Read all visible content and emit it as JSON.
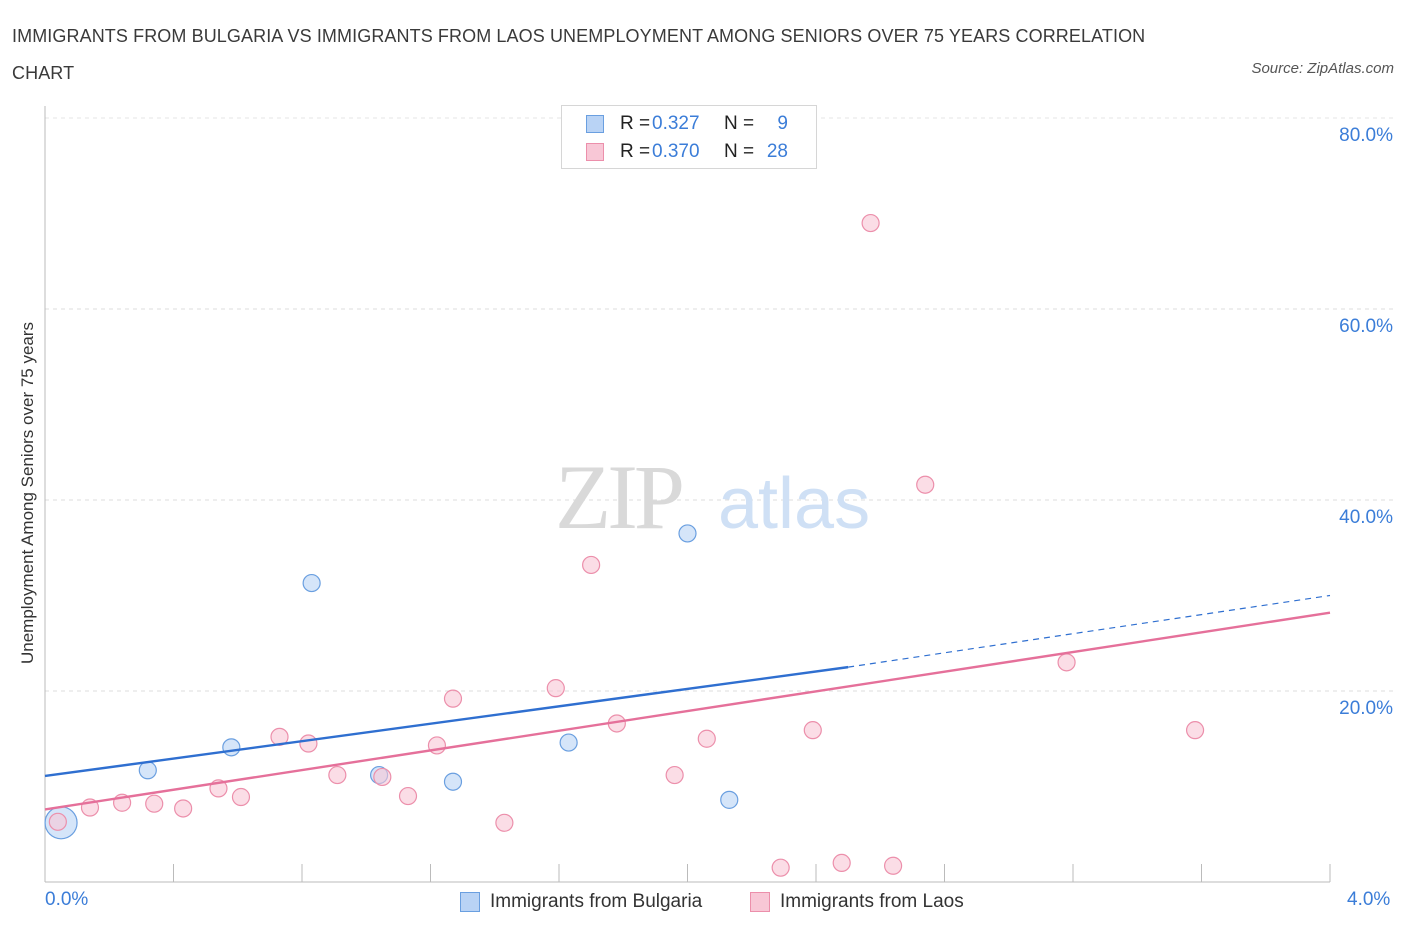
{
  "title": "IMMIGRANTS FROM BULGARIA VS IMMIGRANTS FROM LAOS UNEMPLOYMENT AMONG SENIORS OVER 75 YEARS CORRELATION CHART",
  "source": "Source: ZipAtlas.com",
  "watermark": {
    "zip": "ZIP",
    "atlas": "atlas"
  },
  "colors": {
    "bulgaria_fill": "#b9d3f5",
    "bulgaria_stroke": "#6a9fe0",
    "bulgaria_line": "#2f6fd0",
    "laos_fill": "#f8c7d6",
    "laos_stroke": "#ec8fab",
    "laos_line": "#e5709a",
    "axis_label": "#3b7dd8"
  },
  "legend": {
    "rows": [
      {
        "series": "bulgaria",
        "r_label": "R =",
        "r_value": "0.327",
        "n_label": "N =",
        "n_value": "9"
      },
      {
        "series": "laos",
        "r_label": "R =",
        "r_value": "0.370",
        "n_label": "N =",
        "n_value": "28"
      }
    ]
  },
  "chart_data": {
    "type": "scatter",
    "title": "IMMIGRANTS FROM BULGARIA VS IMMIGRANTS FROM LAOS UNEMPLOYMENT AMONG SENIORS OVER 75 YEARS CORRELATION CHART",
    "xlabel": "",
    "ylabel": "Unemployment Among Seniors over 75 years",
    "xlim": [
      0,
      4
    ],
    "ylim": [
      0,
      80
    ],
    "x_tick_labels": [
      "0.0%",
      "4.0%"
    ],
    "y_ticks": [
      20,
      40,
      60,
      80
    ],
    "y_tick_labels": [
      "20.0%",
      "40.0%",
      "60.0%",
      "80.0%"
    ],
    "grid": true,
    "series": [
      {
        "name": "Immigrants from Bulgaria",
        "key": "bulgaria",
        "points": [
          {
            "x": 0.05,
            "y": 6.2,
            "big": true
          },
          {
            "x": 0.32,
            "y": 11.7
          },
          {
            "x": 0.58,
            "y": 14.1
          },
          {
            "x": 0.83,
            "y": 31.3
          },
          {
            "x": 1.04,
            "y": 11.2
          },
          {
            "x": 1.27,
            "y": 10.5
          },
          {
            "x": 1.63,
            "y": 14.6
          },
          {
            "x": 2.0,
            "y": 36.5
          },
          {
            "x": 2.13,
            "y": 8.6
          }
        ],
        "trend": {
          "x1": 0,
          "y1": 11.1,
          "x2": 2.5,
          "y2": 22.5,
          "dash_to_x": 4.0,
          "dash_to_y": 30.0
        }
      },
      {
        "name": "Immigrants from Laos",
        "key": "laos",
        "points": [
          {
            "x": 0.04,
            "y": 6.3
          },
          {
            "x": 0.14,
            "y": 7.8
          },
          {
            "x": 0.24,
            "y": 8.3
          },
          {
            "x": 0.34,
            "y": 8.2
          },
          {
            "x": 0.43,
            "y": 7.7
          },
          {
            "x": 0.54,
            "y": 9.8
          },
          {
            "x": 0.61,
            "y": 8.9
          },
          {
            "x": 0.73,
            "y": 15.2
          },
          {
            "x": 0.82,
            "y": 14.5
          },
          {
            "x": 0.91,
            "y": 11.2
          },
          {
            "x": 1.05,
            "y": 11.0
          },
          {
            "x": 1.13,
            "y": 9.0
          },
          {
            "x": 1.22,
            "y": 14.3
          },
          {
            "x": 1.27,
            "y": 19.2
          },
          {
            "x": 1.43,
            "y": 6.2
          },
          {
            "x": 1.59,
            "y": 20.3
          },
          {
            "x": 1.7,
            "y": 33.2
          },
          {
            "x": 1.78,
            "y": 16.6
          },
          {
            "x": 1.96,
            "y": 11.2
          },
          {
            "x": 2.06,
            "y": 15.0
          },
          {
            "x": 2.29,
            "y": 1.5
          },
          {
            "x": 2.39,
            "y": 15.9
          },
          {
            "x": 2.48,
            "y": 2.0
          },
          {
            "x": 2.57,
            "y": 69.0
          },
          {
            "x": 2.64,
            "y": 1.7
          },
          {
            "x": 2.74,
            "y": 41.6
          },
          {
            "x": 3.18,
            "y": 23.0
          },
          {
            "x": 3.58,
            "y": 15.9
          }
        ],
        "trend": {
          "x1": 0,
          "y1": 7.6,
          "x2": 4.0,
          "y2": 28.2
        }
      }
    ]
  },
  "bottom_legend": [
    {
      "series": "bulgaria",
      "label": "Immigrants from Bulgaria"
    },
    {
      "series": "laos",
      "label": "Immigrants from Laos"
    }
  ]
}
